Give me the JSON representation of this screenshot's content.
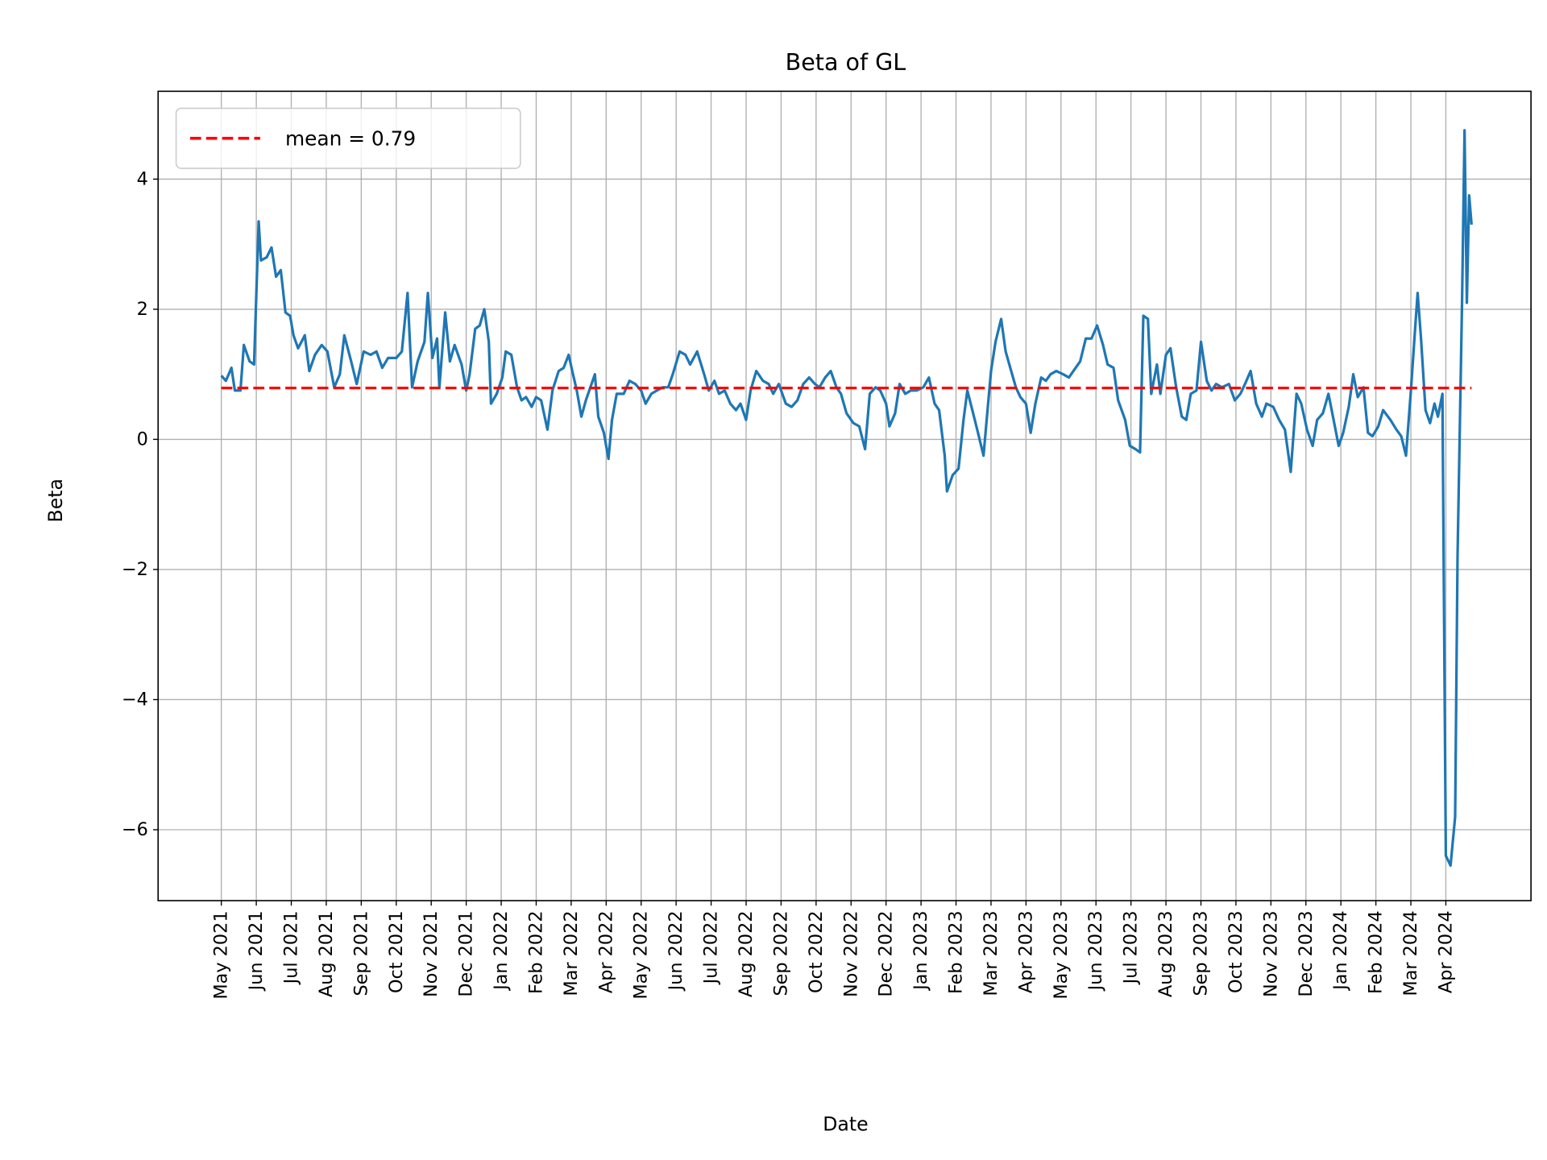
{
  "chart_data": {
    "type": "line",
    "title": "Beta of GL",
    "xlabel": "Date",
    "ylabel": "Beta",
    "grid": true,
    "legend_placement": "top-left",
    "ylim": [
      -7.09,
      5.35
    ],
    "xlim": [
      "2021-03-07",
      "2024-06-14"
    ],
    "yticks": [
      4,
      2,
      0,
      -2,
      -4,
      -6
    ],
    "ytick_labels": [
      "4",
      "2",
      "0",
      "−2",
      "−4",
      "−6"
    ],
    "xticks": [
      "2021-05-01",
      "2021-06-01",
      "2021-07-01",
      "2021-08-01",
      "2021-09-01",
      "2021-10-01",
      "2021-11-01",
      "2021-12-01",
      "2022-01-01",
      "2022-02-01",
      "2022-03-01",
      "2022-04-01",
      "2022-05-01",
      "2022-06-01",
      "2022-07-01",
      "2022-08-01",
      "2022-09-01",
      "2022-10-01",
      "2022-11-01",
      "2022-12-01",
      "2023-01-01",
      "2023-02-01",
      "2023-03-01",
      "2023-04-01",
      "2023-05-01",
      "2023-06-01",
      "2023-07-01",
      "2023-08-01",
      "2023-09-01",
      "2023-10-01",
      "2023-11-01",
      "2023-12-01",
      "2024-01-01",
      "2024-02-01",
      "2024-03-01",
      "2024-04-01"
    ],
    "xtick_labels": [
      "May 2021",
      "Jun 2021",
      "Jul 2021",
      "Aug 2021",
      "Sep 2021",
      "Oct 2021",
      "Nov 2021",
      "Dec 2021",
      "Jan 2022",
      "Feb 2022",
      "Mar 2022",
      "Apr 2022",
      "May 2022",
      "Jun 2022",
      "Jul 2022",
      "Aug 2022",
      "Sep 2022",
      "Oct 2022",
      "Nov 2022",
      "Dec 2022",
      "Jan 2023",
      "Feb 2023",
      "Mar 2023",
      "Apr 2023",
      "May 2023",
      "Jun 2023",
      "Jul 2023",
      "Aug 2023",
      "Sep 2023",
      "Oct 2023",
      "Nov 2023",
      "Dec 2023",
      "Jan 2024",
      "Feb 2024",
      "Mar 2024",
      "Apr 2024"
    ],
    "mean": {
      "value": 0.79,
      "label": "mean = 0.79",
      "color": "#ff0000",
      "style": "dashed"
    },
    "series": [
      {
        "color": "#1f77b4",
        "x": [
          "2021-05-01",
          "2021-05-05",
          "2021-05-10",
          "2021-05-13",
          "2021-05-18",
          "2021-05-21",
          "2021-05-26",
          "2021-05-30",
          "2021-06-03",
          "2021-06-05",
          "2021-06-10",
          "2021-06-14",
          "2021-06-18",
          "2021-06-22",
          "2021-06-26",
          "2021-06-30",
          "2021-07-03",
          "2021-07-07",
          "2021-07-13",
          "2021-07-17",
          "2021-07-22",
          "2021-07-28",
          "2021-08-02",
          "2021-08-08",
          "2021-08-13",
          "2021-08-17",
          "2021-08-23",
          "2021-08-28",
          "2021-09-03",
          "2021-09-09",
          "2021-09-14",
          "2021-09-19",
          "2021-09-24",
          "2021-10-01",
          "2021-10-06",
          "2021-10-11",
          "2021-10-15",
          "2021-10-20",
          "2021-10-26",
          "2021-10-29",
          "2021-11-02",
          "2021-11-06",
          "2021-11-08",
          "2021-11-13",
          "2021-11-17",
          "2021-11-21",
          "2021-11-27",
          "2021-12-01",
          "2021-12-04",
          "2021-12-09",
          "2021-12-13",
          "2021-12-17",
          "2021-12-21",
          "2021-12-23",
          "2021-12-28",
          "2022-01-02",
          "2022-01-05",
          "2022-01-10",
          "2022-01-15",
          "2022-01-19",
          "2022-01-23",
          "2022-01-28",
          "2022-02-01",
          "2022-02-05",
          "2022-02-10",
          "2022-02-14",
          "2022-02-19",
          "2022-02-23",
          "2022-02-27",
          "2022-03-02",
          "2022-03-06",
          "2022-03-10",
          "2022-03-14",
          "2022-03-18",
          "2022-03-22",
          "2022-03-25",
          "2022-03-30",
          "2022-04-03",
          "2022-04-06",
          "2022-04-10",
          "2022-04-16",
          "2022-04-21",
          "2022-04-26",
          "2022-05-01",
          "2022-05-05",
          "2022-05-10",
          "2022-05-15",
          "2022-05-20",
          "2022-05-25",
          "2022-05-29",
          "2022-06-04",
          "2022-06-09",
          "2022-06-13",
          "2022-06-19",
          "2022-06-25",
          "2022-06-29",
          "2022-07-04",
          "2022-07-08",
          "2022-07-13",
          "2022-07-18",
          "2022-07-23",
          "2022-07-27",
          "2022-08-01",
          "2022-08-05",
          "2022-08-10",
          "2022-08-16",
          "2022-08-21",
          "2022-08-25",
          "2022-08-30",
          "2022-09-05",
          "2022-09-10",
          "2022-09-15",
          "2022-09-20",
          "2022-09-25",
          "2022-09-30",
          "2022-10-04",
          "2022-10-09",
          "2022-10-14",
          "2022-10-19",
          "2022-10-23",
          "2022-10-28",
          "2022-11-03",
          "2022-11-08",
          "2022-11-13",
          "2022-11-17",
          "2022-11-22",
          "2022-11-26",
          "2022-12-01",
          "2022-12-04",
          "2022-12-09",
          "2022-12-13",
          "2022-12-18",
          "2022-12-23",
          "2022-12-28",
          "2023-01-03",
          "2023-01-08",
          "2023-01-13",
          "2023-01-17",
          "2023-01-22",
          "2023-01-24",
          "2023-01-29",
          "2023-02-03",
          "2023-02-07",
          "2023-02-10",
          "2023-02-14",
          "2023-02-18",
          "2023-02-23",
          "2023-02-26",
          "2023-03-01",
          "2023-03-05",
          "2023-03-10",
          "2023-03-14",
          "2023-03-18",
          "2023-03-23",
          "2023-03-27",
          "2023-04-01",
          "2023-04-05",
          "2023-04-09",
          "2023-04-14",
          "2023-04-18",
          "2023-04-22",
          "2023-04-27",
          "2023-05-03",
          "2023-05-08",
          "2023-05-12",
          "2023-05-18",
          "2023-05-23",
          "2023-05-28",
          "2023-06-02",
          "2023-06-07",
          "2023-06-11",
          "2023-06-16",
          "2023-06-20",
          "2023-06-26",
          "2023-06-30",
          "2023-07-05",
          "2023-07-09",
          "2023-07-12",
          "2023-07-16",
          "2023-07-19",
          "2023-07-24",
          "2023-07-27",
          "2023-08-01",
          "2023-08-05",
          "2023-08-10",
          "2023-08-15",
          "2023-08-19",
          "2023-08-23",
          "2023-08-28",
          "2023-09-01",
          "2023-09-06",
          "2023-09-10",
          "2023-09-14",
          "2023-09-19",
          "2023-09-25",
          "2023-09-30",
          "2023-10-05",
          "2023-10-09",
          "2023-10-14",
          "2023-10-19",
          "2023-10-24",
          "2023-10-28",
          "2023-11-03",
          "2023-11-08",
          "2023-11-13",
          "2023-11-18",
          "2023-11-23",
          "2023-11-27",
          "2023-12-02",
          "2023-12-07",
          "2023-12-11",
          "2023-12-16",
          "2023-12-21",
          "2023-12-25",
          "2023-12-30",
          "2024-01-03",
          "2024-01-08",
          "2024-01-12",
          "2024-01-16",
          "2024-01-21",
          "2024-01-25",
          "2024-01-29",
          "2024-02-03",
          "2024-02-07",
          "2024-02-13",
          "2024-02-18",
          "2024-02-22",
          "2024-02-26",
          "2024-03-01",
          "2024-03-04",
          "2024-03-07",
          "2024-03-10",
          "2024-03-14",
          "2024-03-18",
          "2024-03-22",
          "2024-03-25",
          "2024-03-29",
          "2024-04-01",
          "2024-04-05",
          "2024-04-09",
          "2024-04-11",
          "2024-04-15",
          "2024-04-17",
          "2024-04-19",
          "2024-04-21",
          "2024-04-23"
        ],
        "y": [
          0.98,
          0.9,
          1.1,
          0.75,
          0.75,
          1.45,
          1.2,
          1.15,
          3.35,
          2.75,
          2.8,
          2.95,
          2.5,
          2.6,
          1.95,
          1.9,
          1.6,
          1.4,
          1.6,
          1.05,
          1.3,
          1.45,
          1.35,
          0.8,
          1.0,
          1.6,
          1.2,
          0.85,
          1.35,
          1.3,
          1.35,
          1.1,
          1.25,
          1.25,
          1.35,
          2.25,
          0.8,
          1.2,
          1.5,
          2.25,
          1.25,
          1.55,
          0.8,
          1.95,
          1.2,
          1.45,
          1.15,
          0.75,
          1.0,
          1.7,
          1.75,
          2.0,
          1.5,
          0.55,
          0.7,
          0.95,
          1.35,
          1.3,
          0.8,
          0.6,
          0.65,
          0.5,
          0.65,
          0.6,
          0.15,
          0.75,
          1.05,
          1.1,
          1.3,
          1.05,
          0.75,
          0.35,
          0.6,
          0.8,
          1.0,
          0.35,
          0.1,
          -0.3,
          0.3,
          0.7,
          0.7,
          0.9,
          0.85,
          0.75,
          0.55,
          0.7,
          0.75,
          0.8,
          0.8,
          1.0,
          1.35,
          1.3,
          1.15,
          1.35,
          1.0,
          0.75,
          0.9,
          0.7,
          0.75,
          0.55,
          0.45,
          0.55,
          0.3,
          0.75,
          1.05,
          0.9,
          0.85,
          0.7,
          0.85,
          0.55,
          0.5,
          0.6,
          0.85,
          0.95,
          0.85,
          0.8,
          0.95,
          1.05,
          0.8,
          0.7,
          0.4,
          0.25,
          0.2,
          -0.15,
          0.7,
          0.8,
          0.75,
          0.55,
          0.2,
          0.4,
          0.85,
          0.7,
          0.75,
          0.75,
          0.8,
          0.95,
          0.55,
          0.45,
          -0.25,
          -0.8,
          -0.55,
          -0.45,
          0.3,
          0.75,
          0.45,
          0.15,
          -0.25,
          0.4,
          1.05,
          1.5,
          1.85,
          1.35,
          1.1,
          0.8,
          0.65,
          0.55,
          0.1,
          0.55,
          0.95,
          0.9,
          1.0,
          1.05,
          1.0,
          0.95,
          1.05,
          1.2,
          1.55,
          1.55,
          1.75,
          1.45,
          1.15,
          1.1,
          0.6,
          0.3,
          -0.1,
          -0.15,
          -0.2,
          1.9,
          1.85,
          0.7,
          1.15,
          0.7,
          1.3,
          1.4,
          0.8,
          0.35,
          0.3,
          0.7,
          0.75,
          1.5,
          0.9,
          0.75,
          0.85,
          0.8,
          0.85,
          0.6,
          0.7,
          0.85,
          1.05,
          0.55,
          0.35,
          0.55,
          0.5,
          0.3,
          0.15,
          -0.5,
          0.7,
          0.55,
          0.15,
          -0.1,
          0.3,
          0.4,
          0.7,
          0.35,
          -0.1,
          0.1,
          0.5,
          1.0,
          0.65,
          0.8,
          0.1,
          0.05,
          0.2,
          0.45,
          0.3,
          0.15,
          0.05,
          -0.25,
          0.75,
          1.5,
          2.25,
          1.55,
          0.45,
          0.25,
          0.55,
          0.35,
          0.7,
          -6.4,
          -6.55,
          -5.8,
          -1.8,
          2.2,
          4.75,
          2.1,
          3.75,
          3.3
        ]
      }
    ]
  }
}
